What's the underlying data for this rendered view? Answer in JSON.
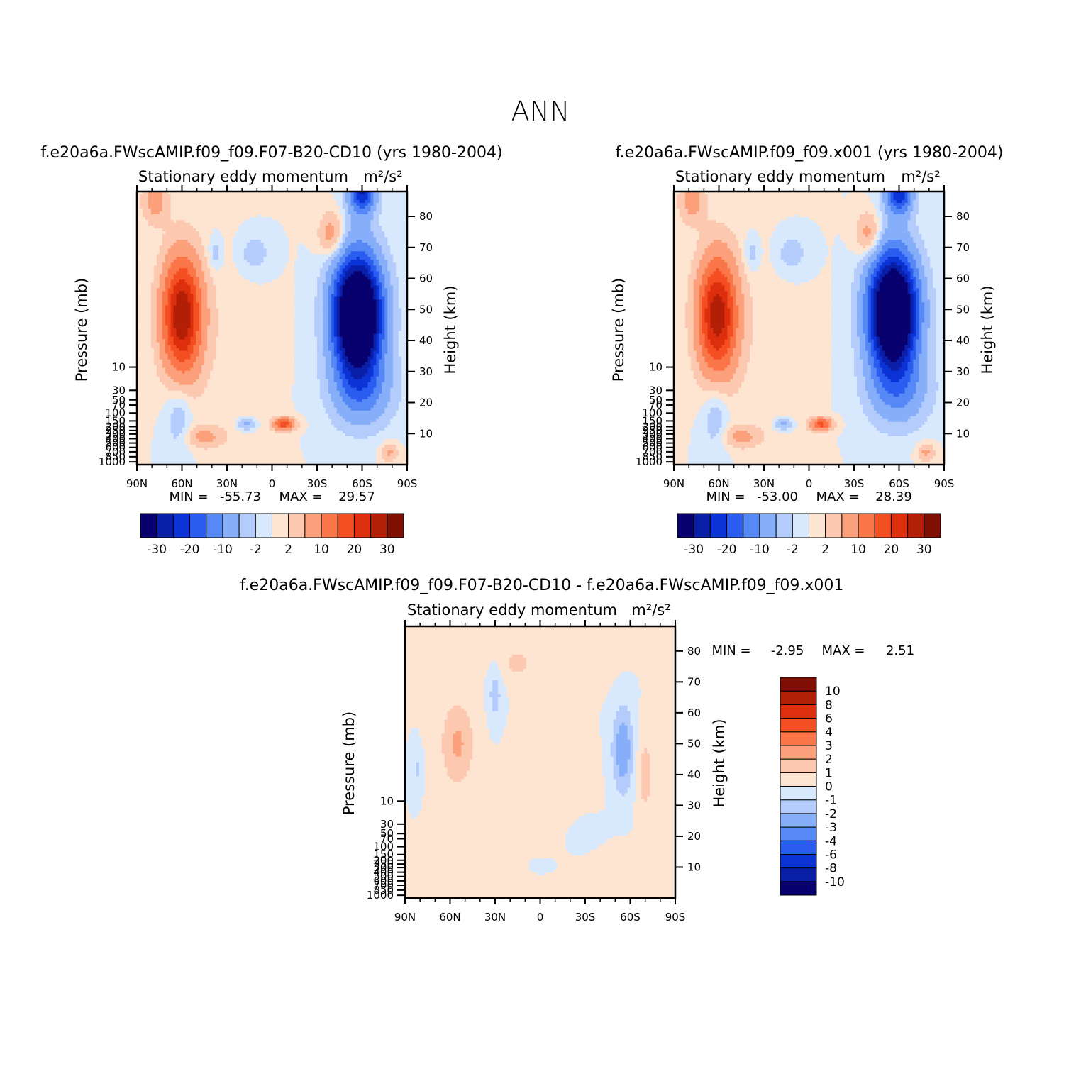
{
  "page_title": "ANN",
  "colors": {
    "div20": [
      "#08006e",
      "#0a1fa8",
      "#0b33d6",
      "#2a5cf0",
      "#5689f5",
      "#86aef9",
      "#b4ccfc",
      "#d8e8fd",
      "#fde5d2",
      "#fcc9b0",
      "#fca07c",
      "#fa7649",
      "#f44e23",
      "#dd2e0d",
      "#b21e06",
      "#7e0f02"
    ],
    "div13": [
      "#08006e",
      "#0a1fa8",
      "#0b33d6",
      "#2a5cf0",
      "#5689f5",
      "#86aef9",
      "#b4ccfc",
      "#d8e8fd",
      "#fde5d2",
      "#fcc9b0",
      "#fca07c",
      "#fa7649",
      "#f44e23",
      "#dd2e0d",
      "#b21e06",
      "#7e0f02"
    ]
  },
  "chart_data": [
    {
      "id": "panel-a",
      "type": "heatmap",
      "case_title": "f.e20a6a.FWscAMIP.f09_f09.F07-B20-CD10 (yrs 1980-2004)",
      "variable": "Stationary eddy momentum",
      "units": "m²/s²",
      "ylabel_left": "Pressure (mb)",
      "ylabel_right": "Height (km)",
      "x_ticks": [
        "90N",
        "60N",
        "30N",
        "0",
        "30S",
        "60S",
        "90S"
      ],
      "x_range": [
        90,
        -90
      ],
      "height_range_km": [
        0,
        88
      ],
      "pressure_ticks": [
        "10",
        "30",
        "50",
        "70",
        "100",
        "150",
        "200",
        "250",
        "300",
        "400",
        "500",
        "600",
        "700",
        "850",
        "1000"
      ],
      "height_ticks": [
        "10",
        "20",
        "30",
        "40",
        "50",
        "60",
        "70",
        "80"
      ],
      "height_tick_values": [
        10,
        20,
        30,
        40,
        50,
        60,
        70,
        80
      ],
      "min_label": "MIN =",
      "min_value": "-55.73",
      "max_label": "MAX =",
      "max_value": "29.57",
      "levels": [
        -40,
        -30,
        -25,
        -20,
        -15,
        -10,
        -5,
        -2,
        0,
        2,
        5,
        10,
        15,
        20,
        25,
        30
      ],
      "colorbar_labels": [
        "-30",
        "-20",
        "-10",
        "-2",
        "2",
        "10",
        "20",
        "30"
      ],
      "features": [
        {
          "lat": 60,
          "h": 48,
          "sx": 9,
          "sy": 13,
          "amp": 29.6
        },
        {
          "lat": 78,
          "h": 85,
          "sx": 6,
          "sy": 5,
          "amp": 7
        },
        {
          "lat": 45,
          "h": 9,
          "sx": 9,
          "sy": 2.5,
          "amp": 6
        },
        {
          "lat": -8,
          "h": 13,
          "sx": 5,
          "sy": 1.4,
          "amp": 18
        },
        {
          "lat": -40,
          "h": 74,
          "sx": 6,
          "sy": 5,
          "amp": 8
        },
        {
          "lat": -57,
          "h": 48,
          "sx": 11,
          "sy": 13,
          "amp": -55.7
        },
        {
          "lat": -60,
          "h": 24,
          "sx": 14,
          "sy": 8,
          "amp": -10
        },
        {
          "lat": -60,
          "h": 88,
          "sx": 6,
          "sy": 5,
          "amp": -25
        },
        {
          "lat": 17,
          "h": 13,
          "sx": 4,
          "sy": 1.3,
          "amp": -6
        },
        {
          "lat": 62,
          "h": 16,
          "sx": 6,
          "sy": 9,
          "amp": -4.5
        },
        {
          "lat": 12,
          "h": 68,
          "sx": 8,
          "sy": 5,
          "amp": -3.5
        },
        {
          "lat": 38,
          "h": 68,
          "sx": 3.5,
          "sy": 4,
          "amp": -3.5
        },
        {
          "lat": 30,
          "h": 40,
          "sx": 18,
          "sy": 25,
          "amp": 1.2
        },
        {
          "lat": -78,
          "h": 4,
          "sx": 4,
          "sy": 2,
          "amp": 6
        }
      ]
    },
    {
      "id": "panel-b",
      "type": "heatmap",
      "case_title": "f.e20a6a.FWscAMIP.f09_f09.x001 (yrs 1980-2004)",
      "variable": "Stationary eddy momentum",
      "units": "m²/s²",
      "ylabel_left": "Pressure (mb)",
      "ylabel_right": "Height (km)",
      "x_ticks": [
        "90N",
        "60N",
        "30N",
        "0",
        "30S",
        "60S",
        "90S"
      ],
      "x_range": [
        90,
        -90
      ],
      "height_range_km": [
        0,
        88
      ],
      "pressure_ticks": [
        "10",
        "30",
        "50",
        "70",
        "100",
        "150",
        "200",
        "250",
        "300",
        "400",
        "500",
        "600",
        "700",
        "850",
        "1000"
      ],
      "height_ticks": [
        "10",
        "20",
        "30",
        "40",
        "50",
        "60",
        "70",
        "80"
      ],
      "height_tick_values": [
        10,
        20,
        30,
        40,
        50,
        60,
        70,
        80
      ],
      "min_label": "MIN =",
      "min_value": "-53.00",
      "max_label": "MAX =",
      "max_value": "28.39",
      "levels": [
        -40,
        -30,
        -25,
        -20,
        -15,
        -10,
        -5,
        -2,
        0,
        2,
        5,
        10,
        15,
        20,
        25,
        30
      ],
      "colorbar_labels": [
        "-30",
        "-20",
        "-10",
        "-2",
        "2",
        "10",
        "20",
        "30"
      ],
      "features": [
        {
          "lat": 61,
          "h": 48,
          "sx": 9,
          "sy": 13,
          "amp": 28.4
        },
        {
          "lat": 78,
          "h": 85,
          "sx": 6,
          "sy": 5,
          "amp": 7
        },
        {
          "lat": 45,
          "h": 9,
          "sx": 9,
          "sy": 2.5,
          "amp": 6
        },
        {
          "lat": -8,
          "h": 13,
          "sx": 5,
          "sy": 1.4,
          "amp": 17
        },
        {
          "lat": -40,
          "h": 74,
          "sx": 6,
          "sy": 5,
          "amp": 8
        },
        {
          "lat": -56,
          "h": 49,
          "sx": 11,
          "sy": 13,
          "amp": -53
        },
        {
          "lat": -60,
          "h": 24,
          "sx": 14,
          "sy": 8,
          "amp": -9
        },
        {
          "lat": -60,
          "h": 88,
          "sx": 6,
          "sy": 5,
          "amp": -24
        },
        {
          "lat": 17,
          "h": 13,
          "sx": 4,
          "sy": 1.3,
          "amp": -6
        },
        {
          "lat": 62,
          "h": 16,
          "sx": 6,
          "sy": 9,
          "amp": -4.5
        },
        {
          "lat": 12,
          "h": 68,
          "sx": 8,
          "sy": 5,
          "amp": -3.5
        },
        {
          "lat": 38,
          "h": 68,
          "sx": 3.5,
          "sy": 4,
          "amp": -3.5
        },
        {
          "lat": 30,
          "h": 40,
          "sx": 18,
          "sy": 25,
          "amp": 1.2
        },
        {
          "lat": -78,
          "h": 4,
          "sx": 4,
          "sy": 2,
          "amp": 6
        }
      ]
    },
    {
      "id": "panel-diff",
      "type": "heatmap",
      "case_title": "f.e20a6a.FWscAMIP.f09_f09.F07-B20-CD10 - f.e20a6a.FWscAMIP.f09_f09.x001",
      "variable": "Stationary eddy momentum",
      "units": "m²/s²",
      "ylabel_left": "Pressure (mb)",
      "ylabel_right": "Height (km)",
      "x_ticks": [
        "90N",
        "60N",
        "30N",
        "0",
        "30S",
        "60S",
        "90S"
      ],
      "x_range": [
        90,
        -90
      ],
      "height_range_km": [
        0,
        88
      ],
      "pressure_ticks": [
        "10",
        "30",
        "50",
        "70",
        "100",
        "150",
        "200",
        "250",
        "300",
        "400",
        "500",
        "600",
        "700",
        "850",
        "1000"
      ],
      "height_ticks": [
        "10",
        "20",
        "30",
        "40",
        "50",
        "60",
        "70",
        "80"
      ],
      "height_tick_values": [
        10,
        20,
        30,
        40,
        50,
        60,
        70,
        80
      ],
      "min_label": "MIN =",
      "min_value": "-2.95",
      "max_label": "MAX =",
      "max_value": "2.51",
      "levels": [
        -12,
        -10,
        -8,
        -6,
        -4,
        -3,
        -2,
        -1,
        0,
        1,
        2,
        3,
        4,
        6,
        8,
        10
      ],
      "colorbar_labels": [
        "10",
        "8",
        "6",
        "4",
        "3",
        "2",
        "1",
        "0",
        "-1",
        "-2",
        "-3",
        "-4",
        "-6",
        "-8",
        "-10"
      ],
      "features": [
        {
          "lat": -55,
          "h": 48,
          "sx": 5,
          "sy": 10,
          "amp": -2.95
        },
        {
          "lat": 55,
          "h": 50,
          "sx": 8,
          "sy": 10,
          "amp": 2.2
        },
        {
          "lat": 30,
          "h": 66,
          "sx": 3,
          "sy": 6,
          "amp": -1.6
        },
        {
          "lat": -70,
          "h": 40,
          "sx": 4,
          "sy": 10,
          "amp": 1.5
        },
        {
          "lat": 15,
          "h": 76,
          "sx": 8,
          "sy": 4,
          "amp": 1.3
        },
        {
          "lat": -30,
          "h": 78,
          "sx": 14,
          "sy": 6,
          "amp": 0.9
        },
        {
          "lat": 45,
          "h": 82,
          "sx": 9,
          "sy": 5,
          "amp": 0.9
        },
        {
          "lat": 82,
          "h": 42,
          "sx": 2,
          "sy": 4,
          "amp": -1.2
        },
        {
          "lat": 0,
          "h": 11,
          "sx": 5,
          "sy": 1.5,
          "amp": -1.1
        },
        {
          "lat": -8,
          "h": 35,
          "sx": 18,
          "sy": 12,
          "amp": 0.5
        },
        {
          "lat": 10,
          "h": 17,
          "sx": 10,
          "sy": 5,
          "amp": 0.6
        },
        {
          "lat": -50,
          "h": 12,
          "sx": 15,
          "sy": 4,
          "amp": 0.6
        },
        {
          "lat": -30,
          "h": 20,
          "sx": 10,
          "sy": 5,
          "amp": -0.5
        },
        {
          "lat": 62,
          "h": 8,
          "sx": 12,
          "sy": 4,
          "amp": 0.6
        }
      ]
    }
  ]
}
